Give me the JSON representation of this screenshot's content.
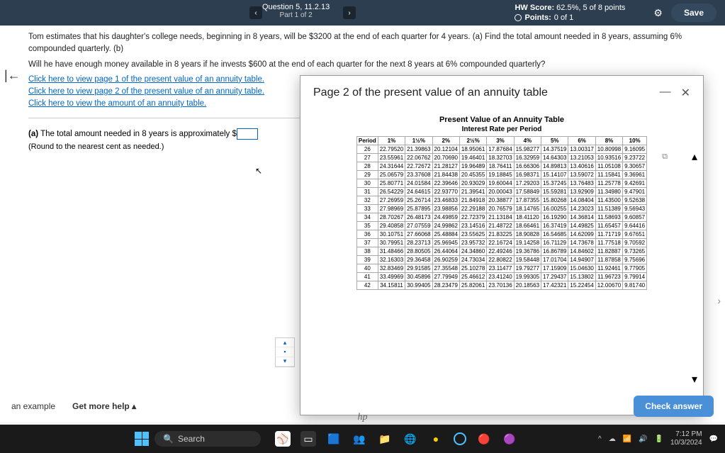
{
  "topbar": {
    "question_label": "Question 5, 11.2.13",
    "part_label": "Part 1 of 2",
    "hw_score_label": "HW Score:",
    "hw_score_value": "62.5%, 5 of 8 points",
    "points_label": "Points:",
    "points_value": "0 of 1",
    "save_label": "Save"
  },
  "question": {
    "text_line1": "Tom estimates that his daughter's college needs, beginning in 8 years, will be $3200 at the end of each quarter for 4 years. (a) Find the total amount needed in 8 years, assuming 6% compounded quarterly. (b)",
    "text_line2": "Will he have enough money available in 8 years if he invests $600 at the end of each quarter for the next 8 years at 6% compounded quarterly?",
    "link1": "Click here to view page 1 of the present value of an annuity table.",
    "link2": "Click here to view page 2 of the present value of an annuity table.",
    "link3": "Click here to view the amount of an annuity table."
  },
  "answer": {
    "part_a_label": "(a)",
    "part_a_text": "The total amount needed in 8 years is approximately $",
    "round_note": "(Round to the nearest cent as needed.)"
  },
  "popup": {
    "title": "Page 2 of the present value of an annuity table",
    "table_caption": "Present Value of an Annuity Table",
    "table_subcaption": "Interest Rate per Period",
    "headers": [
      "Period",
      "1%",
      "1½%",
      "2%",
      "2½%",
      "3%",
      "4%",
      "5%",
      "6%",
      "8%",
      "10%"
    ],
    "rows": [
      [
        "26",
        "22.79520",
        "21.39863",
        "20.12104",
        "18.95061",
        "17.87684",
        "15.98277",
        "14.37519",
        "13.00317",
        "10.80998",
        "9.16095"
      ],
      [
        "27",
        "23.55961",
        "22.06762",
        "20.70690",
        "19.46401",
        "18.32703",
        "16.32959",
        "14.64303",
        "13.21053",
        "10.93516",
        "9.23722"
      ],
      [
        "28",
        "24.31644",
        "22.72672",
        "21.28127",
        "19.96489",
        "18.76411",
        "16.66306",
        "14.89813",
        "13.40616",
        "11.05108",
        "9.30657"
      ],
      [
        "29",
        "25.06579",
        "23.37608",
        "21.84438",
        "20.45355",
        "19.18845",
        "16.98371",
        "15.14107",
        "13.59072",
        "11.15841",
        "9.36961"
      ],
      [
        "30",
        "25.80771",
        "24.01584",
        "22.39646",
        "20.93029",
        "19.60044",
        "17.29203",
        "15.37245",
        "13.76483",
        "11.25778",
        "9.42691"
      ],
      [
        "31",
        "26.54229",
        "24.64615",
        "22.93770",
        "21.39541",
        "20.00043",
        "17.58849",
        "15.59281",
        "13.92909",
        "11.34980",
        "9.47901"
      ],
      [
        "32",
        "27.26959",
        "25.26714",
        "23.46833",
        "21.84918",
        "20.38877",
        "17.87355",
        "15.80268",
        "14.08404",
        "11.43500",
        "9.52638"
      ],
      [
        "33",
        "27.98969",
        "25.87895",
        "23.98856",
        "22.29188",
        "20.76579",
        "18.14765",
        "16.00255",
        "14.23023",
        "11.51389",
        "9.56943"
      ],
      [
        "34",
        "28.70267",
        "26.48173",
        "24.49859",
        "22.72379",
        "21.13184",
        "18.41120",
        "16.19290",
        "14.36814",
        "11.58693",
        "9.60857"
      ],
      [
        "35",
        "29.40858",
        "27.07559",
        "24.99862",
        "23.14516",
        "21.48722",
        "18.66461",
        "16.37419",
        "14.49825",
        "11.65457",
        "9.64416"
      ],
      [
        "36",
        "30.10751",
        "27.66068",
        "25.48884",
        "23.55625",
        "21.83225",
        "18.90828",
        "16.54685",
        "14.62099",
        "11.71719",
        "9.67651"
      ],
      [
        "37",
        "30.79951",
        "28.23713",
        "25.96945",
        "23.95732",
        "22.16724",
        "19.14258",
        "16.71129",
        "14.73678",
        "11.77518",
        "9.70592"
      ],
      [
        "38",
        "31.48466",
        "28.80505",
        "26.44064",
        "24.34860",
        "22.49246",
        "19.36786",
        "16.86789",
        "14.84602",
        "11.82887",
        "9.73265"
      ],
      [
        "39",
        "32.16303",
        "29.36458",
        "26.90259",
        "24.73034",
        "22.80822",
        "19.58448",
        "17.01704",
        "14.94907",
        "11.87858",
        "9.75696"
      ],
      [
        "40",
        "32.83469",
        "29.91585",
        "27.35548",
        "25.10278",
        "23.11477",
        "19.79277",
        "17.15909",
        "15.04630",
        "11.92461",
        "9.77905"
      ],
      [
        "41",
        "33.49969",
        "30.45896",
        "27.79949",
        "25.46612",
        "23.41240",
        "19.99305",
        "17.29437",
        "15.13802",
        "11.96723",
        "9.79914"
      ],
      [
        "42",
        "34.15811",
        "30.99405",
        "28.23479",
        "25.82061",
        "23.70136",
        "20.18563",
        "17.42321",
        "15.22454",
        "12.00670",
        "9.81740"
      ]
    ]
  },
  "footer": {
    "example_label": "an example",
    "help_label": "Get more help",
    "check_label": "Check answer"
  },
  "taskbar": {
    "search_placeholder": "Search",
    "time": "7:12 PM",
    "date": "10/3/2024"
  }
}
